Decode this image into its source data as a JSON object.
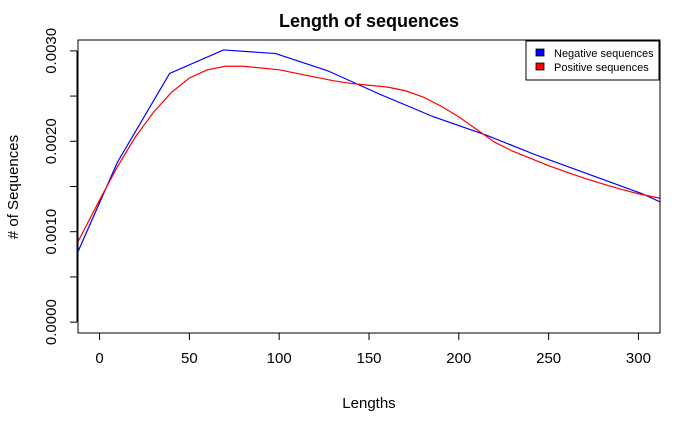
{
  "chart_data": {
    "type": "line",
    "title": "Length of sequences",
    "xlabel": "Lengths",
    "ylabel": "# of Sequences",
    "xlim": [
      -12,
      312
    ],
    "ylim": [
      -0.00012,
      0.00312
    ],
    "x_ticks": [
      0,
      50,
      100,
      150,
      200,
      250,
      300
    ],
    "x_tick_labels": [
      "0",
      "50",
      "100",
      "150",
      "200",
      "250",
      "300"
    ],
    "y_ticks": [
      0.0,
      0.0005,
      0.001,
      0.0015,
      0.002,
      0.0025,
      0.003
    ],
    "y_tick_labels": [
      "0.0000",
      "",
      "0.0010",
      "",
      "0.0020",
      "",
      "0.0030"
    ],
    "grid": false,
    "legend_position": "top-right",
    "series": [
      {
        "name": "Negative sequences",
        "color": "#0000ff",
        "x": [
          -12,
          10,
          39,
          69,
          98,
          127,
          156,
          186,
          215,
          244,
          273,
          302,
          312
        ],
        "y": [
          0.00078,
          0.00177,
          0.00275,
          0.00301,
          0.00297,
          0.00278,
          0.00252,
          0.00227,
          0.00207,
          0.00184,
          0.00163,
          0.00142,
          0.00133
        ]
      },
      {
        "name": "Positive sequences",
        "color": "#ff0000",
        "x": [
          -12,
          0,
          10,
          20,
          30,
          40,
          50,
          60,
          70,
          80,
          90,
          100,
          110,
          120,
          130,
          140,
          150,
          160,
          170,
          180,
          190,
          200,
          210,
          220,
          230,
          240,
          250,
          260,
          270,
          280,
          290,
          300,
          312
        ],
        "y": [
          0.00089,
          0.00135,
          0.00172,
          0.00205,
          0.00232,
          0.00254,
          0.0027,
          0.00279,
          0.00283,
          0.00283,
          0.00281,
          0.00279,
          0.00275,
          0.00271,
          0.00267,
          0.00264,
          0.00262,
          0.0026,
          0.00256,
          0.00249,
          0.00239,
          0.00227,
          0.00213,
          0.00199,
          0.00189,
          0.00181,
          0.00173,
          0.00166,
          0.00159,
          0.00153,
          0.00147,
          0.00142,
          0.00137
        ]
      }
    ]
  }
}
